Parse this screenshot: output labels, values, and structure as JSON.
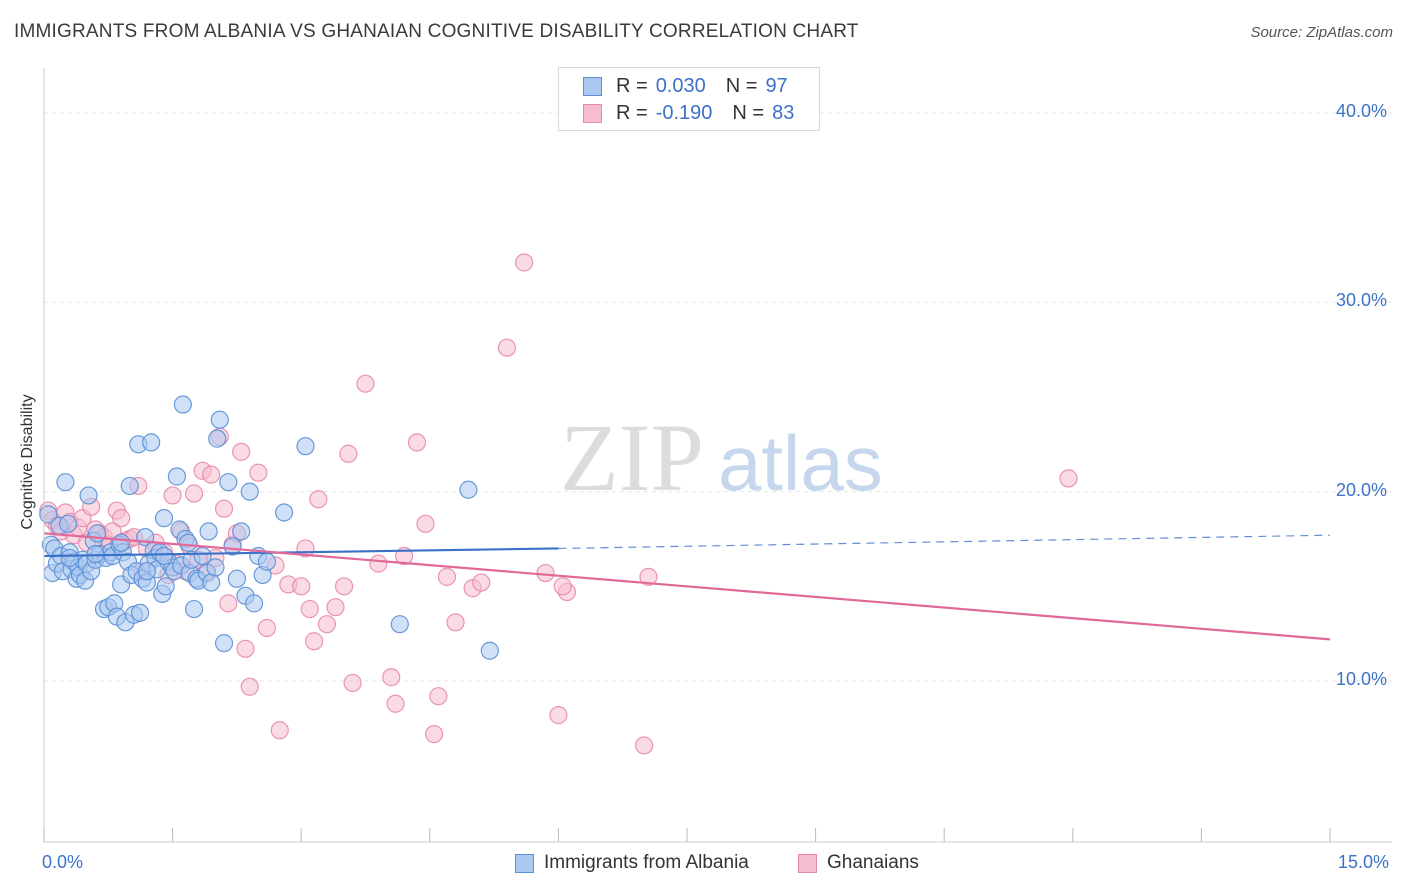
{
  "title": "IMMIGRANTS FROM ALBANIA VS GHANAIAN COGNITIVE DISABILITY CORRELATION CHART",
  "source": "Source: ZipAtlas.com",
  "watermark": {
    "zip": "ZIP",
    "atlas": "atlas"
  },
  "legend": {
    "albania": {
      "r_label": "R =",
      "r_value": "0.030",
      "n_label": "N =",
      "n_value": "97"
    },
    "ghana": {
      "r_label": "R =",
      "r_value": "-0.190",
      "n_label": "N =",
      "n_value": "83"
    }
  },
  "bottom_legend": {
    "albania": "Immigrants from Albania",
    "ghana": "Ghanaians"
  },
  "colors": {
    "albania_fill": "#aac8f0",
    "albania_stroke": "#5b8fd6",
    "albania_line": "#3b72c8",
    "ghana_fill": "#f6bcd0",
    "ghana_stroke": "#e889ab",
    "ghana_line": "#e0699a",
    "tick_text": "#3b72c8",
    "grid": "#e6e6e6"
  },
  "chart_data": {
    "type": "scatter",
    "title": "IMMIGRANTS FROM ALBANIA VS GHANAIAN COGNITIVE DISABILITY CORRELATION CHART",
    "xlabel": "",
    "ylabel": "Cognitive Disability",
    "xlim": [
      0,
      15
    ],
    "ylim": [
      1.5,
      42
    ],
    "x_tick_labels": [
      "0.0%",
      "15.0%"
    ],
    "y_ticks": [
      10,
      20,
      30,
      40
    ],
    "y_tick_labels": [
      "10.0%",
      "20.0%",
      "30.0%",
      "40.0%"
    ],
    "grid": true,
    "legend_position": "top-center",
    "series": [
      {
        "name": "Immigrants from Albania",
        "color": "#5b8fd6",
        "trend": {
          "x": [
            0.0,
            6.0
          ],
          "y": [
            16.6,
            17.0
          ],
          "dashed_extension": {
            "x": [
              6.0,
              15.0
            ],
            "y": [
              17.0,
              17.7
            ]
          }
        },
        "points": [
          {
            "x": 0.05,
            "y": 18.8
          },
          {
            "x": 0.08,
            "y": 17.2
          },
          {
            "x": 0.1,
            "y": 15.7
          },
          {
            "x": 0.12,
            "y": 17.0
          },
          {
            "x": 0.15,
            "y": 16.2
          },
          {
            "x": 0.18,
            "y": 18.2
          },
          {
            "x": 0.2,
            "y": 16.6
          },
          {
            "x": 0.22,
            "y": 15.8
          },
          {
            "x": 0.25,
            "y": 20.5
          },
          {
            "x": 0.28,
            "y": 18.3
          },
          {
            "x": 0.3,
            "y": 16.8
          },
          {
            "x": 0.32,
            "y": 15.9
          },
          {
            "x": 0.35,
            "y": 16.3
          },
          {
            "x": 0.38,
            "y": 15.4
          },
          {
            "x": 0.4,
            "y": 16.0
          },
          {
            "x": 0.42,
            "y": 15.6
          },
          {
            "x": 0.45,
            "y": 16.4
          },
          {
            "x": 0.48,
            "y": 15.3
          },
          {
            "x": 0.5,
            "y": 16.2
          },
          {
            "x": 0.52,
            "y": 19.8
          },
          {
            "x": 0.55,
            "y": 15.8
          },
          {
            "x": 0.58,
            "y": 17.4
          },
          {
            "x": 0.6,
            "y": 16.4
          },
          {
            "x": 0.62,
            "y": 17.8
          },
          {
            "x": 0.65,
            "y": 16.7
          },
          {
            "x": 0.7,
            "y": 13.8
          },
          {
            "x": 0.72,
            "y": 16.5
          },
          {
            "x": 0.75,
            "y": 13.9
          },
          {
            "x": 0.78,
            "y": 16.8
          },
          {
            "x": 0.8,
            "y": 16.6
          },
          {
            "x": 0.82,
            "y": 14.1
          },
          {
            "x": 0.85,
            "y": 13.4
          },
          {
            "x": 0.88,
            "y": 17.2
          },
          {
            "x": 0.9,
            "y": 15.1
          },
          {
            "x": 0.92,
            "y": 16.8
          },
          {
            "x": 0.95,
            "y": 13.1
          },
          {
            "x": 0.98,
            "y": 16.3
          },
          {
            "x": 1.0,
            "y": 20.3
          },
          {
            "x": 1.02,
            "y": 15.6
          },
          {
            "x": 1.05,
            "y": 13.5
          },
          {
            "x": 1.08,
            "y": 15.8
          },
          {
            "x": 1.1,
            "y": 22.5
          },
          {
            "x": 1.12,
            "y": 13.6
          },
          {
            "x": 1.15,
            "y": 15.4
          },
          {
            "x": 1.18,
            "y": 17.6
          },
          {
            "x": 1.2,
            "y": 15.2
          },
          {
            "x": 1.22,
            "y": 16.2
          },
          {
            "x": 1.25,
            "y": 22.6
          },
          {
            "x": 1.28,
            "y": 16.9
          },
          {
            "x": 1.3,
            "y": 16.5
          },
          {
            "x": 1.32,
            "y": 15.9
          },
          {
            "x": 1.35,
            "y": 16.8
          },
          {
            "x": 1.38,
            "y": 14.6
          },
          {
            "x": 1.4,
            "y": 18.6
          },
          {
            "x": 1.42,
            "y": 15.0
          },
          {
            "x": 1.45,
            "y": 16.3
          },
          {
            "x": 1.5,
            "y": 16.0
          },
          {
            "x": 1.52,
            "y": 15.8
          },
          {
            "x": 1.55,
            "y": 20.8
          },
          {
            "x": 1.58,
            "y": 18.0
          },
          {
            "x": 1.6,
            "y": 16.1
          },
          {
            "x": 1.62,
            "y": 24.6
          },
          {
            "x": 1.65,
            "y": 17.5
          },
          {
            "x": 1.68,
            "y": 17.3
          },
          {
            "x": 1.7,
            "y": 15.7
          },
          {
            "x": 1.72,
            "y": 16.4
          },
          {
            "x": 1.75,
            "y": 13.8
          },
          {
            "x": 1.78,
            "y": 15.4
          },
          {
            "x": 1.8,
            "y": 15.3
          },
          {
            "x": 1.85,
            "y": 16.6
          },
          {
            "x": 1.9,
            "y": 15.7
          },
          {
            "x": 1.92,
            "y": 17.9
          },
          {
            "x": 1.95,
            "y": 15.2
          },
          {
            "x": 2.0,
            "y": 16.0
          },
          {
            "x": 2.02,
            "y": 22.8
          },
          {
            "x": 2.05,
            "y": 23.8
          },
          {
            "x": 2.1,
            "y": 12.0
          },
          {
            "x": 2.15,
            "y": 20.5
          },
          {
            "x": 2.2,
            "y": 17.1
          },
          {
            "x": 2.25,
            "y": 15.4
          },
          {
            "x": 2.3,
            "y": 17.9
          },
          {
            "x": 2.35,
            "y": 14.5
          },
          {
            "x": 2.4,
            "y": 20.0
          },
          {
            "x": 2.45,
            "y": 14.1
          },
          {
            "x": 2.5,
            "y": 16.6
          },
          {
            "x": 2.55,
            "y": 15.6
          },
          {
            "x": 2.6,
            "y": 16.3
          },
          {
            "x": 2.8,
            "y": 18.9
          },
          {
            "x": 3.05,
            "y": 22.4
          },
          {
            "x": 4.15,
            "y": 13.0
          },
          {
            "x": 4.95,
            "y": 20.1
          },
          {
            "x": 5.2,
            "y": 11.6
          },
          {
            "x": 0.3,
            "y": 16.5
          },
          {
            "x": 0.6,
            "y": 16.7
          },
          {
            "x": 0.9,
            "y": 17.3
          },
          {
            "x": 1.2,
            "y": 15.8
          },
          {
            "x": 1.4,
            "y": 16.6
          }
        ]
      },
      {
        "name": "Ghanaians",
        "color": "#e889ab",
        "trend": {
          "x": [
            0.0,
            15.0
          ],
          "y": [
            17.8,
            12.2
          ]
        },
        "points": [
          {
            "x": 0.05,
            "y": 19.0
          },
          {
            "x": 0.1,
            "y": 18.5
          },
          {
            "x": 0.15,
            "y": 18.2
          },
          {
            "x": 0.2,
            "y": 17.9
          },
          {
            "x": 0.25,
            "y": 18.9
          },
          {
            "x": 0.3,
            "y": 18.4
          },
          {
            "x": 0.35,
            "y": 17.7
          },
          {
            "x": 0.4,
            "y": 18.1
          },
          {
            "x": 0.45,
            "y": 18.6
          },
          {
            "x": 0.5,
            "y": 17.3
          },
          {
            "x": 0.55,
            "y": 19.2
          },
          {
            "x": 0.6,
            "y": 18.0
          },
          {
            "x": 0.65,
            "y": 17.8
          },
          {
            "x": 0.7,
            "y": 17.6
          },
          {
            "x": 0.75,
            "y": 17.2
          },
          {
            "x": 0.8,
            "y": 17.9
          },
          {
            "x": 0.85,
            "y": 19.0
          },
          {
            "x": 0.9,
            "y": 18.6
          },
          {
            "x": 0.95,
            "y": 17.4
          },
          {
            "x": 1.0,
            "y": 17.5
          },
          {
            "x": 1.05,
            "y": 17.6
          },
          {
            "x": 1.1,
            "y": 20.3
          },
          {
            "x": 1.15,
            "y": 15.8
          },
          {
            "x": 1.2,
            "y": 17.0
          },
          {
            "x": 1.3,
            "y": 17.3
          },
          {
            "x": 1.4,
            "y": 16.8
          },
          {
            "x": 1.45,
            "y": 15.6
          },
          {
            "x": 1.5,
            "y": 19.8
          },
          {
            "x": 1.55,
            "y": 16.2
          },
          {
            "x": 1.6,
            "y": 17.9
          },
          {
            "x": 1.65,
            "y": 15.8
          },
          {
            "x": 1.7,
            "y": 17.1
          },
          {
            "x": 1.75,
            "y": 19.9
          },
          {
            "x": 1.8,
            "y": 16.4
          },
          {
            "x": 1.85,
            "y": 21.1
          },
          {
            "x": 1.9,
            "y": 15.8
          },
          {
            "x": 1.95,
            "y": 20.9
          },
          {
            "x": 2.0,
            "y": 16.5
          },
          {
            "x": 2.05,
            "y": 22.9
          },
          {
            "x": 2.1,
            "y": 19.1
          },
          {
            "x": 2.15,
            "y": 14.1
          },
          {
            "x": 2.2,
            "y": 17.2
          },
          {
            "x": 2.25,
            "y": 17.8
          },
          {
            "x": 2.3,
            "y": 22.1
          },
          {
            "x": 2.35,
            "y": 11.7
          },
          {
            "x": 2.4,
            "y": 9.7
          },
          {
            "x": 2.5,
            "y": 21.0
          },
          {
            "x": 2.6,
            "y": 12.8
          },
          {
            "x": 2.7,
            "y": 16.1
          },
          {
            "x": 2.75,
            "y": 7.4
          },
          {
            "x": 2.85,
            "y": 15.1
          },
          {
            "x": 3.0,
            "y": 15.0
          },
          {
            "x": 3.05,
            "y": 17.0
          },
          {
            "x": 3.1,
            "y": 13.8
          },
          {
            "x": 3.15,
            "y": 12.1
          },
          {
            "x": 3.2,
            "y": 19.6
          },
          {
            "x": 3.3,
            "y": 13.0
          },
          {
            "x": 3.4,
            "y": 13.9
          },
          {
            "x": 3.5,
            "y": 15.0
          },
          {
            "x": 3.55,
            "y": 22.0
          },
          {
            "x": 3.6,
            "y": 9.9
          },
          {
            "x": 3.75,
            "y": 25.7
          },
          {
            "x": 3.9,
            "y": 16.2
          },
          {
            "x": 4.05,
            "y": 10.2
          },
          {
            "x": 4.1,
            "y": 8.8
          },
          {
            "x": 4.2,
            "y": 16.6
          },
          {
            "x": 4.35,
            "y": 22.6
          },
          {
            "x": 4.45,
            "y": 18.3
          },
          {
            "x": 4.55,
            "y": 7.2
          },
          {
            "x": 4.6,
            "y": 9.2
          },
          {
            "x": 4.7,
            "y": 15.5
          },
          {
            "x": 4.8,
            "y": 13.1
          },
          {
            "x": 5.0,
            "y": 14.9
          },
          {
            "x": 5.1,
            "y": 15.2
          },
          {
            "x": 5.4,
            "y": 27.6
          },
          {
            "x": 5.6,
            "y": 32.1
          },
          {
            "x": 5.85,
            "y": 15.7
          },
          {
            "x": 6.0,
            "y": 8.2
          },
          {
            "x": 6.1,
            "y": 14.7
          },
          {
            "x": 7.0,
            "y": 6.6
          },
          {
            "x": 7.05,
            "y": 15.5
          },
          {
            "x": 11.95,
            "y": 20.7
          },
          {
            "x": 6.05,
            "y": 15.0
          }
        ]
      }
    ]
  }
}
